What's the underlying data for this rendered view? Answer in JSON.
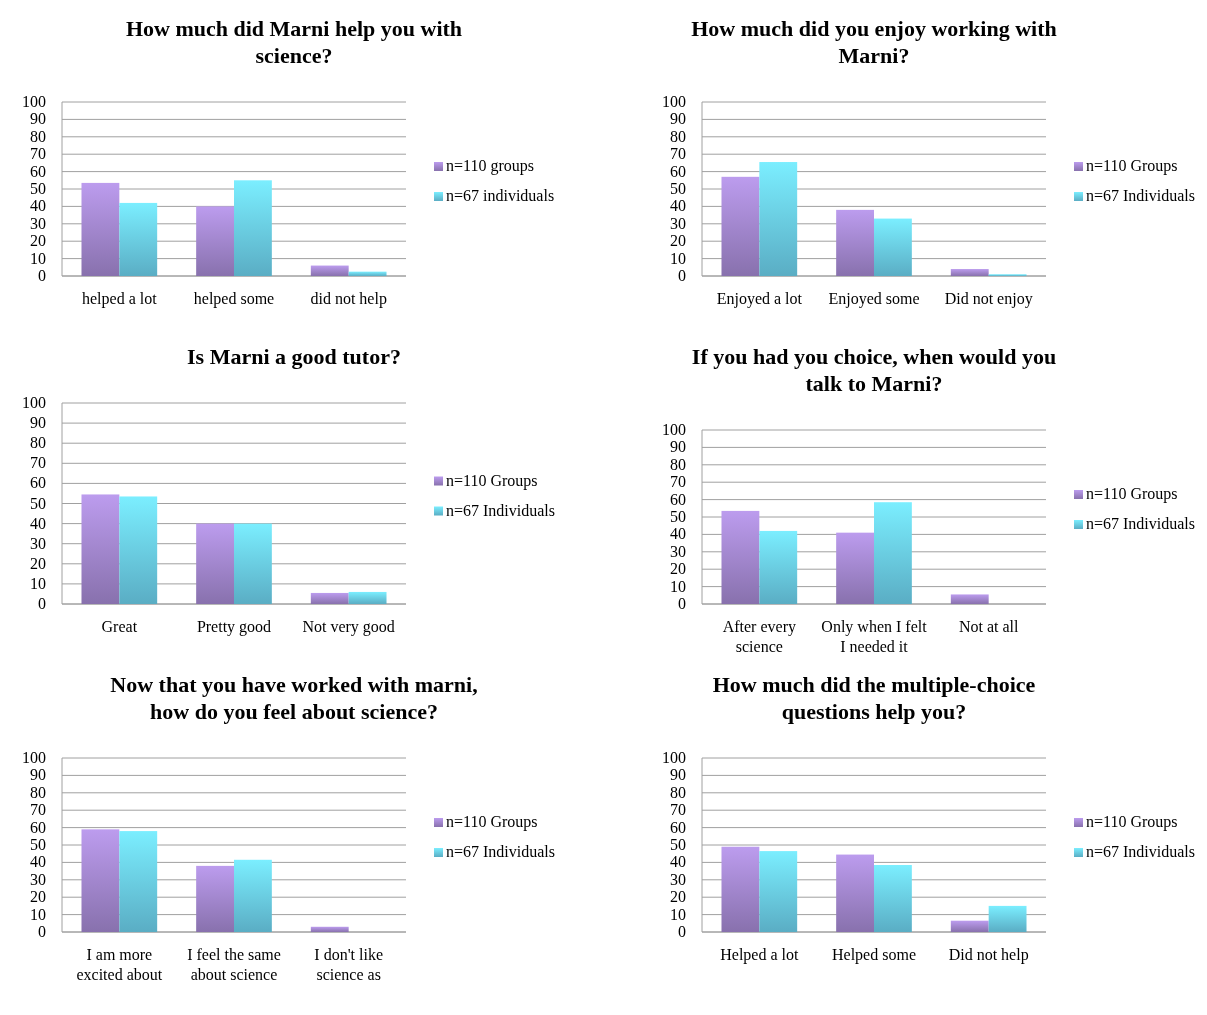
{
  "chart_data": [
    {
      "type": "bar",
      "title": "How much did Marni help you with science?",
      "categories": [
        "helped a lot",
        "helped some",
        "did not help"
      ],
      "series": [
        {
          "name": "n=110 groups",
          "color": "#a68ad2",
          "values": [
            53.5,
            40,
            6
          ]
        },
        {
          "name": "n=67 individuals",
          "color": "#6dd2ee",
          "values": [
            42,
            55,
            2.5
          ]
        }
      ],
      "ylim": [
        0,
        100
      ],
      "yticks": [
        0,
        10,
        20,
        30,
        40,
        50,
        60,
        70,
        80,
        90,
        100
      ],
      "grid": "y",
      "legend": "right"
    },
    {
      "type": "bar",
      "title": "How much did you enjoy working with Marni?",
      "categories": [
        "Enjoyed a lot",
        "Enjoyed some",
        "Did not enjoy"
      ],
      "series": [
        {
          "name": "n=110 Groups",
          "color": "#a68ad2",
          "values": [
            57,
            38,
            4
          ]
        },
        {
          "name": "n=67 Individuals",
          "color": "#6dd2ee",
          "values": [
            65.5,
            33,
            1
          ]
        }
      ],
      "ylim": [
        0,
        100
      ],
      "yticks": [
        0,
        10,
        20,
        30,
        40,
        50,
        60,
        70,
        80,
        90,
        100
      ],
      "grid": "y",
      "legend": "right"
    },
    {
      "type": "bar",
      "title": "Is Marni a good tutor?",
      "categories": [
        "Great",
        "Pretty good",
        "Not very good"
      ],
      "series": [
        {
          "name": "n=110 Groups",
          "color": "#a68ad2",
          "values": [
            54.5,
            40,
            5.5
          ]
        },
        {
          "name": "n=67 Individuals",
          "color": "#6dd2ee",
          "values": [
            53.5,
            40,
            6
          ]
        }
      ],
      "ylim": [
        0,
        100
      ],
      "yticks": [
        0,
        10,
        20,
        30,
        40,
        50,
        60,
        70,
        80,
        90,
        100
      ],
      "grid": "y",
      "legend": "right"
    },
    {
      "type": "bar",
      "title": "If you had you choice, when would you talk to Marni?",
      "categories": [
        "After every science",
        "Only when I felt I needed it",
        "Not at all"
      ],
      "series": [
        {
          "name": "n=110 Groups",
          "color": "#a68ad2",
          "values": [
            53.5,
            41,
            5.5
          ]
        },
        {
          "name": "n=67 Individuals",
          "color": "#6dd2ee",
          "values": [
            42,
            58.5,
            0
          ]
        }
      ],
      "ylim": [
        0,
        100
      ],
      "yticks": [
        0,
        10,
        20,
        30,
        40,
        50,
        60,
        70,
        80,
        90,
        100
      ],
      "grid": "y",
      "legend": "right"
    },
    {
      "type": "bar",
      "title": "Now that you have worked with marni, how do you feel about science?",
      "categories": [
        "I am more excited about",
        "I feel the same about science",
        "I don't like science as"
      ],
      "series": [
        {
          "name": "n=110 Groups",
          "color": "#a68ad2",
          "values": [
            59,
            38,
            3
          ]
        },
        {
          "name": "n=67 Individuals",
          "color": "#6dd2ee",
          "values": [
            58,
            41.5,
            0
          ]
        }
      ],
      "ylim": [
        0,
        100
      ],
      "yticks": [
        0,
        10,
        20,
        30,
        40,
        50,
        60,
        70,
        80,
        90,
        100
      ],
      "grid": "y",
      "legend": "right"
    },
    {
      "type": "bar",
      "title": "How much did the multiple-choice questions help you?",
      "categories": [
        "Helped a lot",
        "Helped some",
        "Did not help"
      ],
      "series": [
        {
          "name": "n=110 Groups",
          "color": "#a68ad2",
          "values": [
            49,
            44.5,
            6.5
          ]
        },
        {
          "name": "n=67 Individuals",
          "color": "#6dd2ee",
          "values": [
            46.5,
            38.5,
            15
          ]
        }
      ],
      "ylim": [
        0,
        100
      ],
      "yticks": [
        0,
        10,
        20,
        30,
        40,
        50,
        60,
        70,
        80,
        90,
        100
      ],
      "grid": "y",
      "legend": "right"
    }
  ]
}
